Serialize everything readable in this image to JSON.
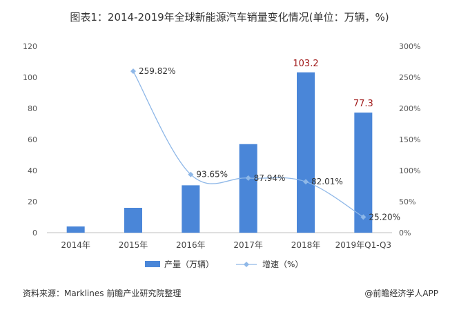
{
  "title": "图表1：2014-2019年全球新能源汽车销量变化情况(单位：万辆，%)",
  "footer": {
    "source": "资料来源：Marklines 前瞻产业研究院整理",
    "brand": "@前瞻经济学人APP"
  },
  "chart_data": {
    "type": "bar",
    "categories": [
      "2014年",
      "2015年",
      "2016年",
      "2017年",
      "2018年",
      "2019年Q1-Q3"
    ],
    "series": [
      {
        "name": "产量（万辆）",
        "type": "bar",
        "axis": "left",
        "color": "#4a86d8",
        "values": [
          4,
          16,
          30.5,
          57,
          103.2,
          77.3
        ],
        "labels": [
          "",
          "",
          "",
          "",
          "103.2",
          "77.3"
        ]
      },
      {
        "name": "增速（%）",
        "type": "line",
        "axis": "right",
        "color": "#8fb8e8",
        "values": [
          null,
          259.82,
          93.65,
          87.94,
          82.01,
          25.2
        ],
        "labels": [
          "",
          "259.82%",
          "93.65%",
          "87.94%",
          "82.01%",
          "25.20%"
        ]
      }
    ],
    "y_left": {
      "ylim": [
        0,
        120
      ],
      "ticks": [
        "0",
        "20",
        "40",
        "60",
        "80",
        "100",
        "120"
      ]
    },
    "y_right": {
      "ylim": [
        0,
        300
      ],
      "ticks": [
        "0%",
        "50%",
        "100%",
        "150%",
        "200%",
        "250%",
        "300%"
      ]
    },
    "grid": false,
    "legend": "bottom"
  }
}
